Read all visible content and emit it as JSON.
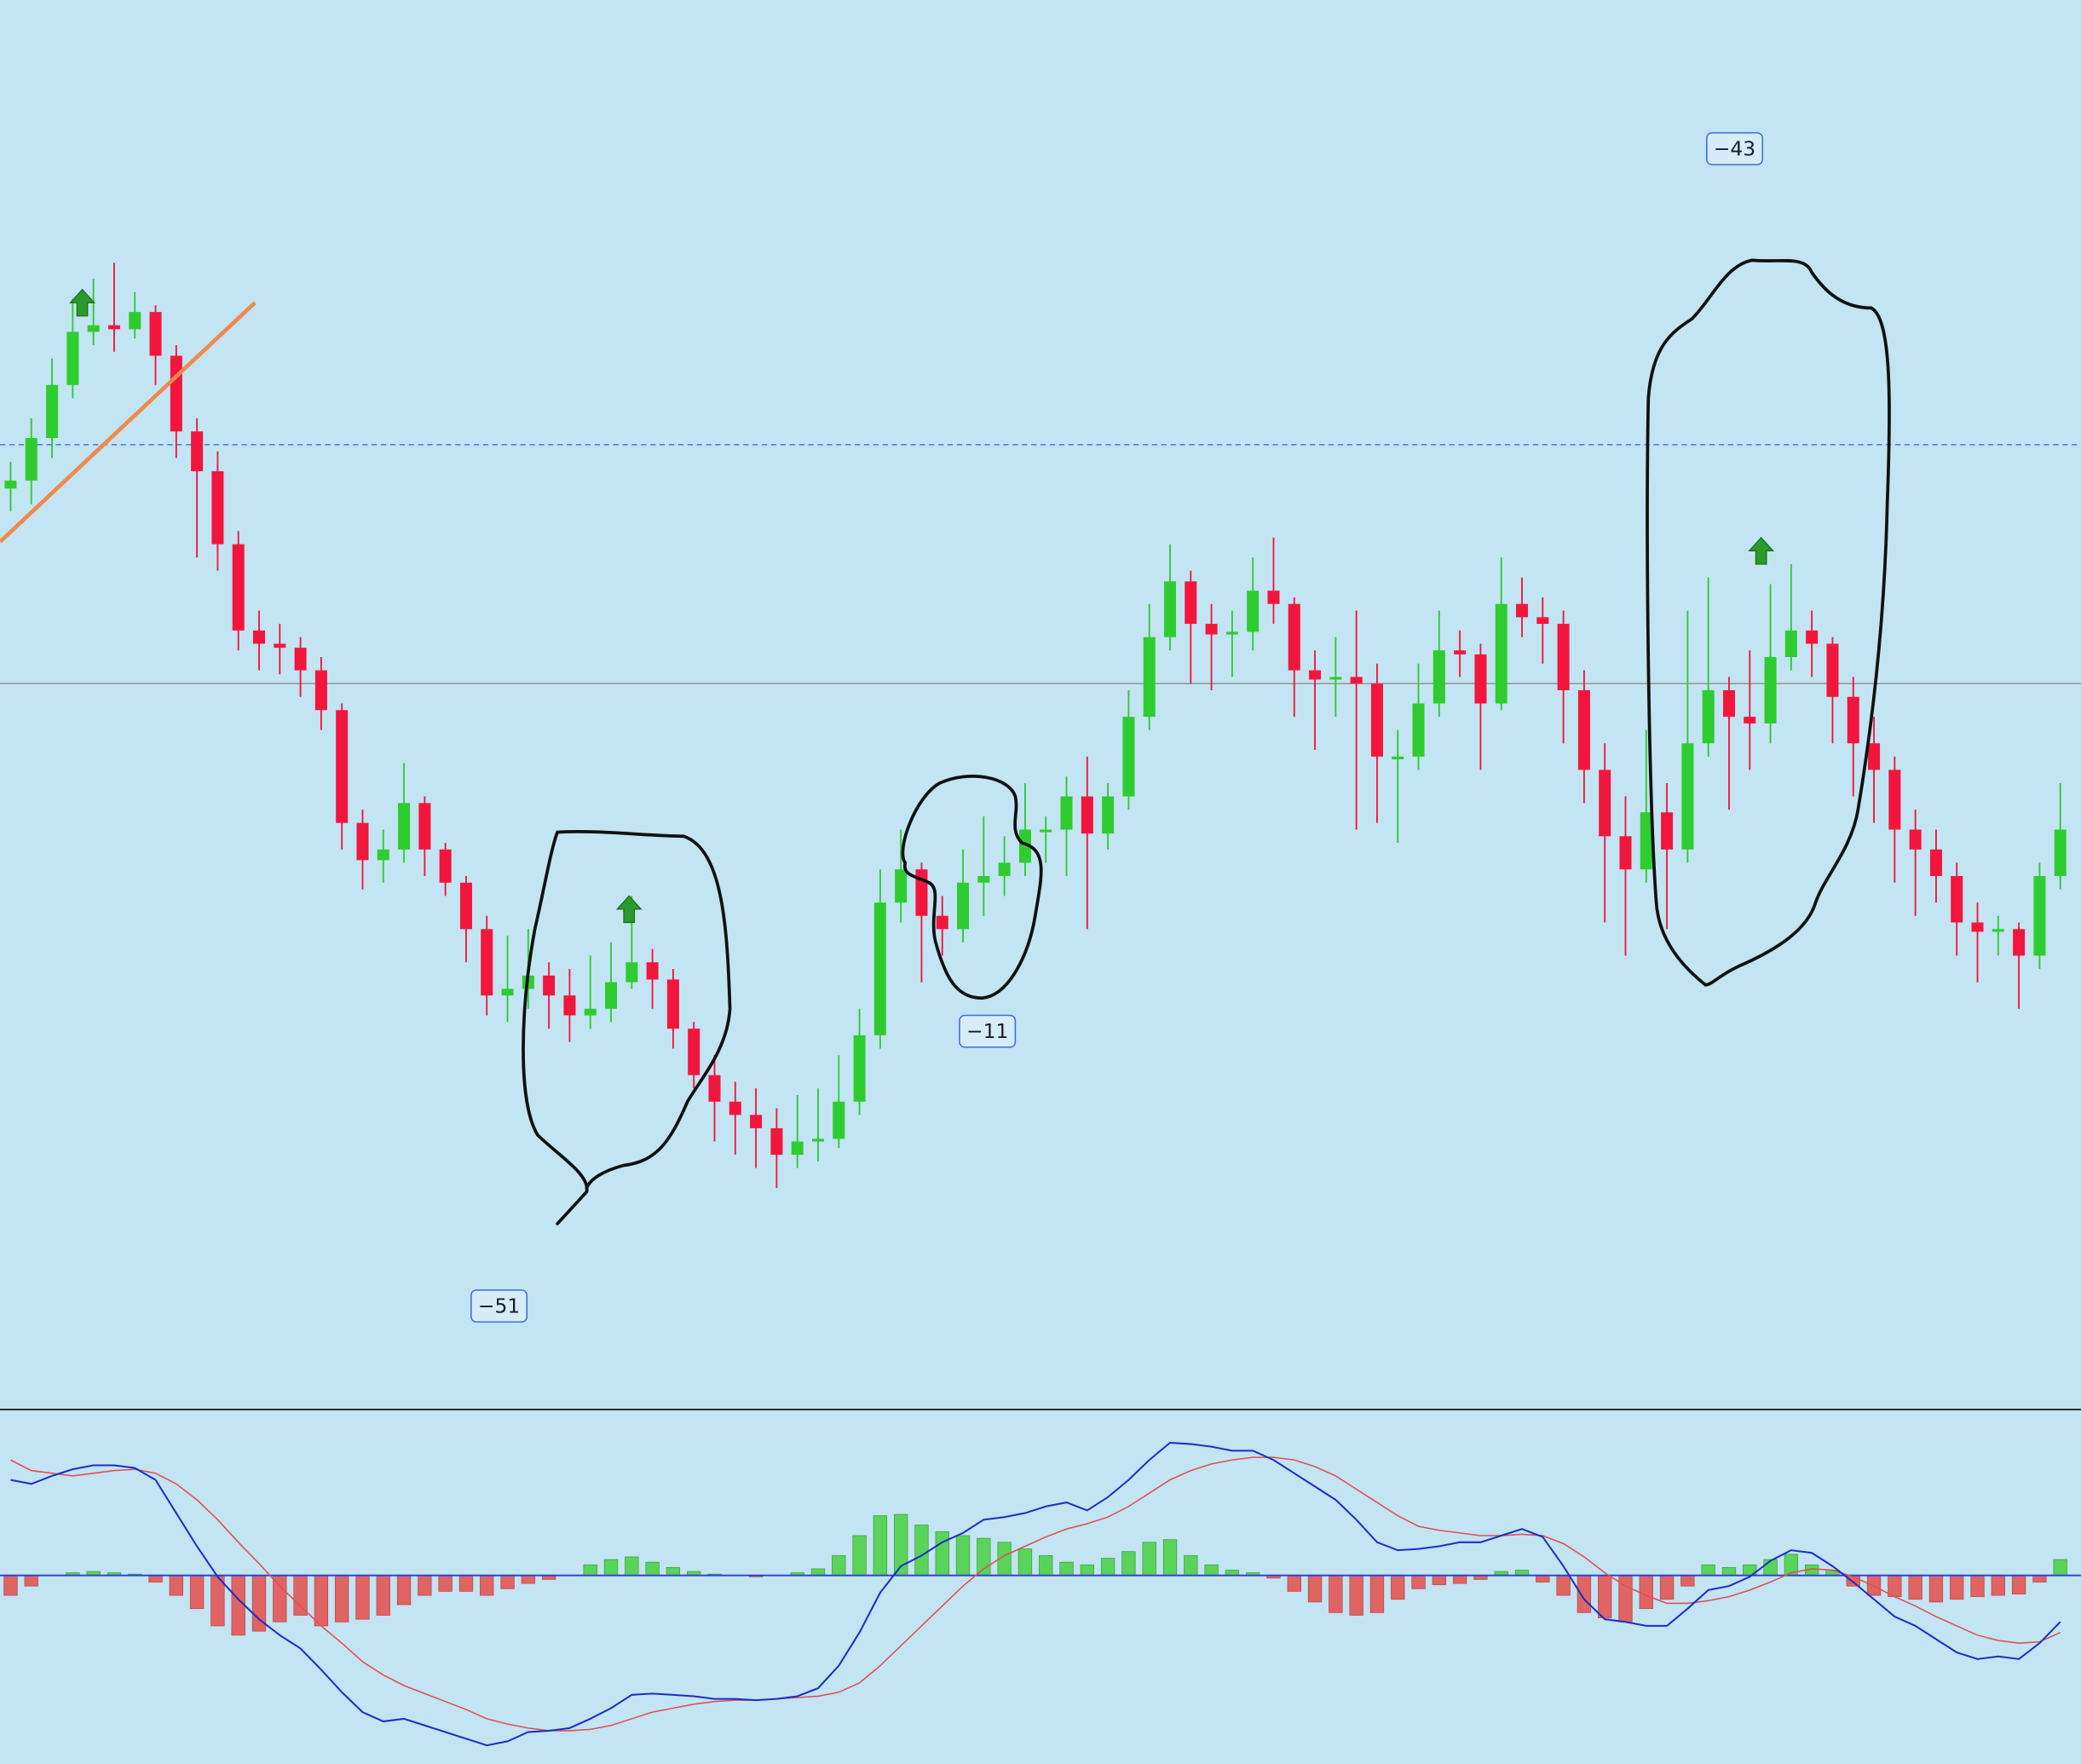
{
  "chart_data": [
    {
      "type": "candlestick",
      "open": [
        692,
        698,
        730,
        770,
        810,
        815,
        812,
        825,
        792,
        735,
        705,
        650,
        585,
        575,
        572,
        555,
        525,
        440,
        412,
        420,
        455,
        420,
        395,
        360,
        310,
        315,
        325,
        310,
        295,
        300,
        320,
        335,
        322,
        285,
        250,
        230,
        220,
        210,
        190,
        200,
        202,
        230,
        280,
        380,
        405,
        370,
        360,
        395,
        400,
        410,
        435,
        435,
        460,
        432,
        460,
        520,
        580,
        622,
        590,
        582,
        584,
        615,
        605,
        555,
        548,
        550,
        545,
        490,
        490,
        530,
        570,
        567,
        530,
        605,
        595,
        590,
        540,
        480,
        430,
        405,
        448,
        420,
        500,
        540,
        520,
        515,
        565,
        585,
        575,
        535,
        500,
        480,
        435,
        420,
        400,
        365,
        358,
        360,
        340,
        400
      ],
      "high": [
        712,
        745,
        790,
        835,
        850,
        862,
        840,
        830,
        800,
        745,
        720,
        660,
        600,
        590,
        580,
        565,
        530,
        450,
        435,
        485,
        460,
        425,
        400,
        370,
        355,
        360,
        335,
        330,
        340,
        350,
        385,
        345,
        330,
        290,
        265,
        245,
        240,
        225,
        235,
        240,
        265,
        300,
        405,
        435,
        410,
        385,
        420,
        445,
        430,
        470,
        445,
        475,
        490,
        470,
        540,
        605,
        650,
        630,
        605,
        600,
        640,
        655,
        610,
        570,
        580,
        600,
        560,
        510,
        560,
        600,
        585,
        575,
        640,
        625,
        610,
        600,
        555,
        500,
        460,
        510,
        470,
        600,
        625,
        550,
        570,
        620,
        635,
        600,
        580,
        550,
        520,
        490,
        450,
        435,
        410,
        380,
        370,
        365,
        410,
        470
      ],
      "low": [
        675,
        680,
        715,
        760,
        800,
        795,
        805,
        770,
        715,
        640,
        630,
        570,
        555,
        552,
        535,
        510,
        420,
        390,
        395,
        410,
        400,
        385,
        335,
        295,
        290,
        300,
        285,
        275,
        285,
        290,
        315,
        300,
        270,
        240,
        200,
        190,
        180,
        165,
        180,
        185,
        195,
        220,
        270,
        365,
        320,
        340,
        350,
        370,
        385,
        400,
        410,
        400,
        360,
        420,
        450,
        510,
        570,
        545,
        540,
        550,
        570,
        590,
        520,
        495,
        520,
        435,
        440,
        425,
        480,
        520,
        550,
        480,
        525,
        580,
        560,
        500,
        455,
        365,
        340,
        395,
        360,
        410,
        490,
        450,
        480,
        500,
        555,
        550,
        500,
        460,
        440,
        395,
        370,
        380,
        340,
        320,
        340,
        300,
        330,
        390
      ],
      "close": [
        698,
        730,
        770,
        810,
        815,
        812,
        825,
        792,
        735,
        705,
        650,
        585,
        575,
        572,
        555,
        525,
        440,
        412,
        420,
        455,
        420,
        395,
        360,
        310,
        315,
        325,
        310,
        295,
        300,
        320,
        335,
        322,
        285,
        250,
        230,
        220,
        210,
        190,
        200,
        202,
        230,
        280,
        380,
        405,
        370,
        360,
        395,
        400,
        410,
        435,
        435,
        460,
        432,
        460,
        520,
        580,
        622,
        590,
        582,
        584,
        615,
        605,
        555,
        548,
        550,
        545,
        490,
        490,
        530,
        570,
        567,
        530,
        605,
        595,
        590,
        540,
        480,
        430,
        405,
        448,
        420,
        500,
        540,
        520,
        515,
        565,
        585,
        575,
        535,
        500,
        480,
        435,
        420,
        400,
        365,
        358,
        360,
        340,
        400,
        435
      ],
      "ylim": [
        0,
        1060
      ],
      "up_color": "#2fcc2f",
      "down_color": "#f2163c",
      "hlines": [
        {
          "value": 725,
          "color": "#5a7be8",
          "dashed": true
        },
        {
          "value": 545,
          "color": "#9a9a9a",
          "dashed": false
        }
      ],
      "trendline": {
        "x": [
          -0.5,
          11.8
        ],
        "y": [
          652,
          832
        ],
        "color": "#f08a4b"
      },
      "annotations": [
        "−51",
        "−11",
        "−43"
      ]
    },
    {
      "type": "macd",
      "histogram": [
        -15,
        -8,
        0,
        2,
        3,
        2,
        1,
        -5,
        -15,
        -25,
        -38,
        -45,
        -42,
        -35,
        -30,
        -38,
        -35,
        -33,
        -30,
        -22,
        -15,
        -12,
        -12,
        -15,
        -10,
        -6,
        -3,
        0,
        8,
        12,
        14,
        10,
        6,
        3,
        1,
        0,
        -1,
        0,
        2,
        5,
        15,
        30,
        45,
        46,
        38,
        33,
        30,
        28,
        25,
        20,
        15,
        10,
        8,
        13,
        18,
        25,
        27,
        15,
        8,
        4,
        2,
        -2,
        -12,
        -20,
        -28,
        -30,
        -28,
        -18,
        -10,
        -7,
        -6,
        -3,
        3,
        4,
        -5,
        -15,
        -28,
        -32,
        -35,
        -25,
        -18,
        -8,
        8,
        6,
        8,
        12,
        16,
        8,
        4,
        -8,
        -15,
        -16,
        -18,
        -20,
        -18,
        -16,
        -15,
        -14,
        -5,
        12
      ],
      "macd": [
        72,
        69,
        75,
        80,
        83,
        83,
        81,
        72,
        47,
        22,
        -1,
        -18,
        -33,
        -45,
        -55,
        -71,
        -88,
        -103,
        -110,
        -108,
        -113,
        -118,
        -123,
        -128,
        -125,
        -118,
        -117,
        -115,
        -108,
        -100,
        -90,
        -89,
        -90,
        -91,
        -93,
        -93,
        -94,
        -93,
        -91,
        -85,
        -68,
        -43,
        -13,
        7,
        15,
        25,
        32,
        42,
        44,
        47,
        52,
        55,
        49,
        59,
        72,
        87,
        100,
        99,
        97,
        94,
        94,
        87,
        77,
        67,
        57,
        42,
        25,
        19,
        20,
        22,
        25,
        25,
        30,
        35,
        29,
        7,
        -18,
        -33,
        -35,
        -38,
        -38,
        -25,
        -11,
        -8,
        -1,
        11,
        19,
        17,
        7,
        -5,
        -18,
        -31,
        -38,
        -48,
        -58,
        -63,
        -61,
        -63,
        -51,
        -35
      ],
      "signal": [
        87,
        79,
        77,
        75,
        77,
        79,
        80,
        77,
        69,
        57,
        42,
        25,
        9,
        -8,
        -23,
        -38,
        -51,
        -65,
        -75,
        -83,
        -89,
        -95,
        -101,
        -108,
        -112,
        -115,
        -117,
        -117,
        -116,
        -113,
        -108,
        -103,
        -100,
        -97,
        -95,
        -94,
        -94,
        -93,
        -92,
        -91,
        -88,
        -81,
        -68,
        -53,
        -38,
        -23,
        -8,
        5,
        15,
        22,
        29,
        35,
        39,
        44,
        52,
        62,
        72,
        79,
        84,
        87,
        89,
        89,
        87,
        82,
        75,
        65,
        55,
        45,
        37,
        34,
        32,
        30,
        30,
        31,
        30,
        24,
        14,
        2,
        -8,
        -15,
        -21,
        -21,
        -19,
        -16,
        -11,
        -5,
        2,
        5,
        4,
        -1,
        -8,
        -16,
        -23,
        -31,
        -38,
        -45,
        -49,
        -51,
        -50,
        -43
      ],
      "ylim": [
        -142,
        125
      ],
      "hist_up_color": "#5ad35a",
      "hist_down_color": "#e06464",
      "macd_color": "#1a2fc4",
      "signal_color": "#e05050"
    }
  ]
}
